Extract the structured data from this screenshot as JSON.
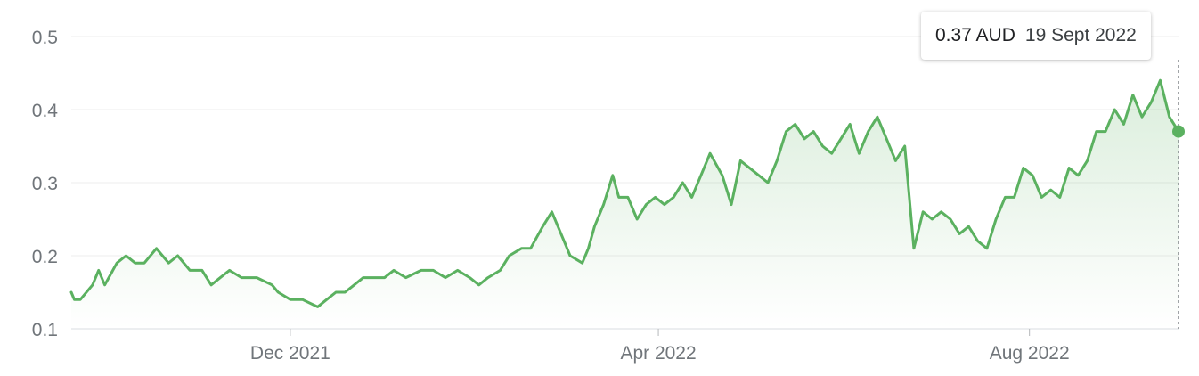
{
  "chart_data": {
    "type": "area",
    "unit": "AUD",
    "y_ticks": [
      "0.1",
      "0.2",
      "0.3",
      "0.4",
      "0.5"
    ],
    "ylim": [
      0.1,
      0.5
    ],
    "x_ticks": [
      {
        "label": "Dec 2021",
        "date": "2021-12-01"
      },
      {
        "label": "Apr 2022",
        "date": "2022-04-01"
      },
      {
        "label": "Aug 2022",
        "date": "2022-08-01"
      }
    ],
    "x_range": [
      "2021-09-20",
      "2022-09-19"
    ],
    "grid": true,
    "legend": "none",
    "line_color": "#5bb160",
    "series": [
      {
        "x": [
          "2021-09-20",
          "2021-09-21",
          "2021-09-23",
          "2021-09-27",
          "2021-09-29",
          "2021-10-01",
          "2021-10-05",
          "2021-10-08",
          "2021-10-11",
          "2021-10-14",
          "2021-10-18",
          "2021-10-20",
          "2021-10-22",
          "2021-10-25",
          "2021-10-29",
          "2021-11-02",
          "2021-11-05",
          "2021-11-08",
          "2021-11-11",
          "2021-11-15",
          "2021-11-17",
          "2021-11-20",
          "2021-11-25",
          "2021-11-27",
          "2021-12-01",
          "2021-12-05",
          "2021-12-10",
          "2021-12-13",
          "2021-12-16",
          "2021-12-19",
          "2021-12-22",
          "2021-12-25",
          "2021-12-28",
          "2022-01-01",
          "2022-01-04",
          "2022-01-08",
          "2022-01-13",
          "2022-01-17",
          "2022-01-21",
          "2022-01-25",
          "2022-01-29",
          "2022-02-01",
          "2022-02-04",
          "2022-02-08",
          "2022-02-11",
          "2022-02-15",
          "2022-02-18",
          "2022-02-22",
          "2022-02-25",
          "2022-03-01",
          "2022-03-03",
          "2022-03-07",
          "2022-03-09",
          "2022-03-11",
          "2022-03-14",
          "2022-03-17",
          "2022-03-19",
          "2022-03-22",
          "2022-03-25",
          "2022-03-28",
          "2022-03-31",
          "2022-04-03",
          "2022-04-06",
          "2022-04-09",
          "2022-04-12",
          "2022-04-15",
          "2022-04-18",
          "2022-04-22",
          "2022-04-25",
          "2022-04-28",
          "2022-05-01",
          "2022-05-04",
          "2022-05-07",
          "2022-05-10",
          "2022-05-13",
          "2022-05-16",
          "2022-05-19",
          "2022-05-22",
          "2022-05-25",
          "2022-05-28",
          "2022-05-31",
          "2022-06-03",
          "2022-06-06",
          "2022-06-09",
          "2022-06-12",
          "2022-06-15",
          "2022-06-18",
          "2022-06-21",
          "2022-06-24",
          "2022-06-27",
          "2022-06-30",
          "2022-07-03",
          "2022-07-06",
          "2022-07-09",
          "2022-07-12",
          "2022-07-15",
          "2022-07-18",
          "2022-07-21",
          "2022-07-24",
          "2022-07-27",
          "2022-07-30",
          "2022-08-02",
          "2022-08-05",
          "2022-08-08",
          "2022-08-11",
          "2022-08-14",
          "2022-08-17",
          "2022-08-20",
          "2022-08-23",
          "2022-08-26",
          "2022-08-29",
          "2022-09-01",
          "2022-09-04",
          "2022-09-07",
          "2022-09-10",
          "2022-09-13",
          "2022-09-16",
          "2022-09-19"
        ],
        "y": [
          0.15,
          0.14,
          0.14,
          0.16,
          0.18,
          0.16,
          0.19,
          0.2,
          0.19,
          0.19,
          0.21,
          0.2,
          0.19,
          0.2,
          0.18,
          0.18,
          0.16,
          0.17,
          0.18,
          0.17,
          0.17,
          0.17,
          0.16,
          0.15,
          0.14,
          0.14,
          0.13,
          0.14,
          0.15,
          0.15,
          0.16,
          0.17,
          0.17,
          0.17,
          0.18,
          0.17,
          0.18,
          0.18,
          0.17,
          0.18,
          0.17,
          0.16,
          0.17,
          0.18,
          0.2,
          0.21,
          0.21,
          0.24,
          0.26,
          0.22,
          0.2,
          0.19,
          0.21,
          0.24,
          0.27,
          0.31,
          0.28,
          0.28,
          0.25,
          0.27,
          0.28,
          0.27,
          0.28,
          0.3,
          0.28,
          0.31,
          0.34,
          0.31,
          0.27,
          0.33,
          0.32,
          0.31,
          0.3,
          0.33,
          0.37,
          0.38,
          0.36,
          0.37,
          0.35,
          0.34,
          0.36,
          0.38,
          0.34,
          0.37,
          0.39,
          0.36,
          0.33,
          0.35,
          0.21,
          0.26,
          0.25,
          0.26,
          0.25,
          0.23,
          0.24,
          0.22,
          0.21,
          0.25,
          0.28,
          0.28,
          0.32,
          0.31,
          0.28,
          0.29,
          0.28,
          0.32,
          0.31,
          0.33,
          0.37,
          0.37,
          0.4,
          0.38,
          0.42,
          0.39,
          0.41,
          0.44,
          0.39,
          0.37
        ]
      }
    ]
  },
  "tooltip": {
    "value": "0.37 AUD",
    "date": "19 Sept 2022"
  }
}
